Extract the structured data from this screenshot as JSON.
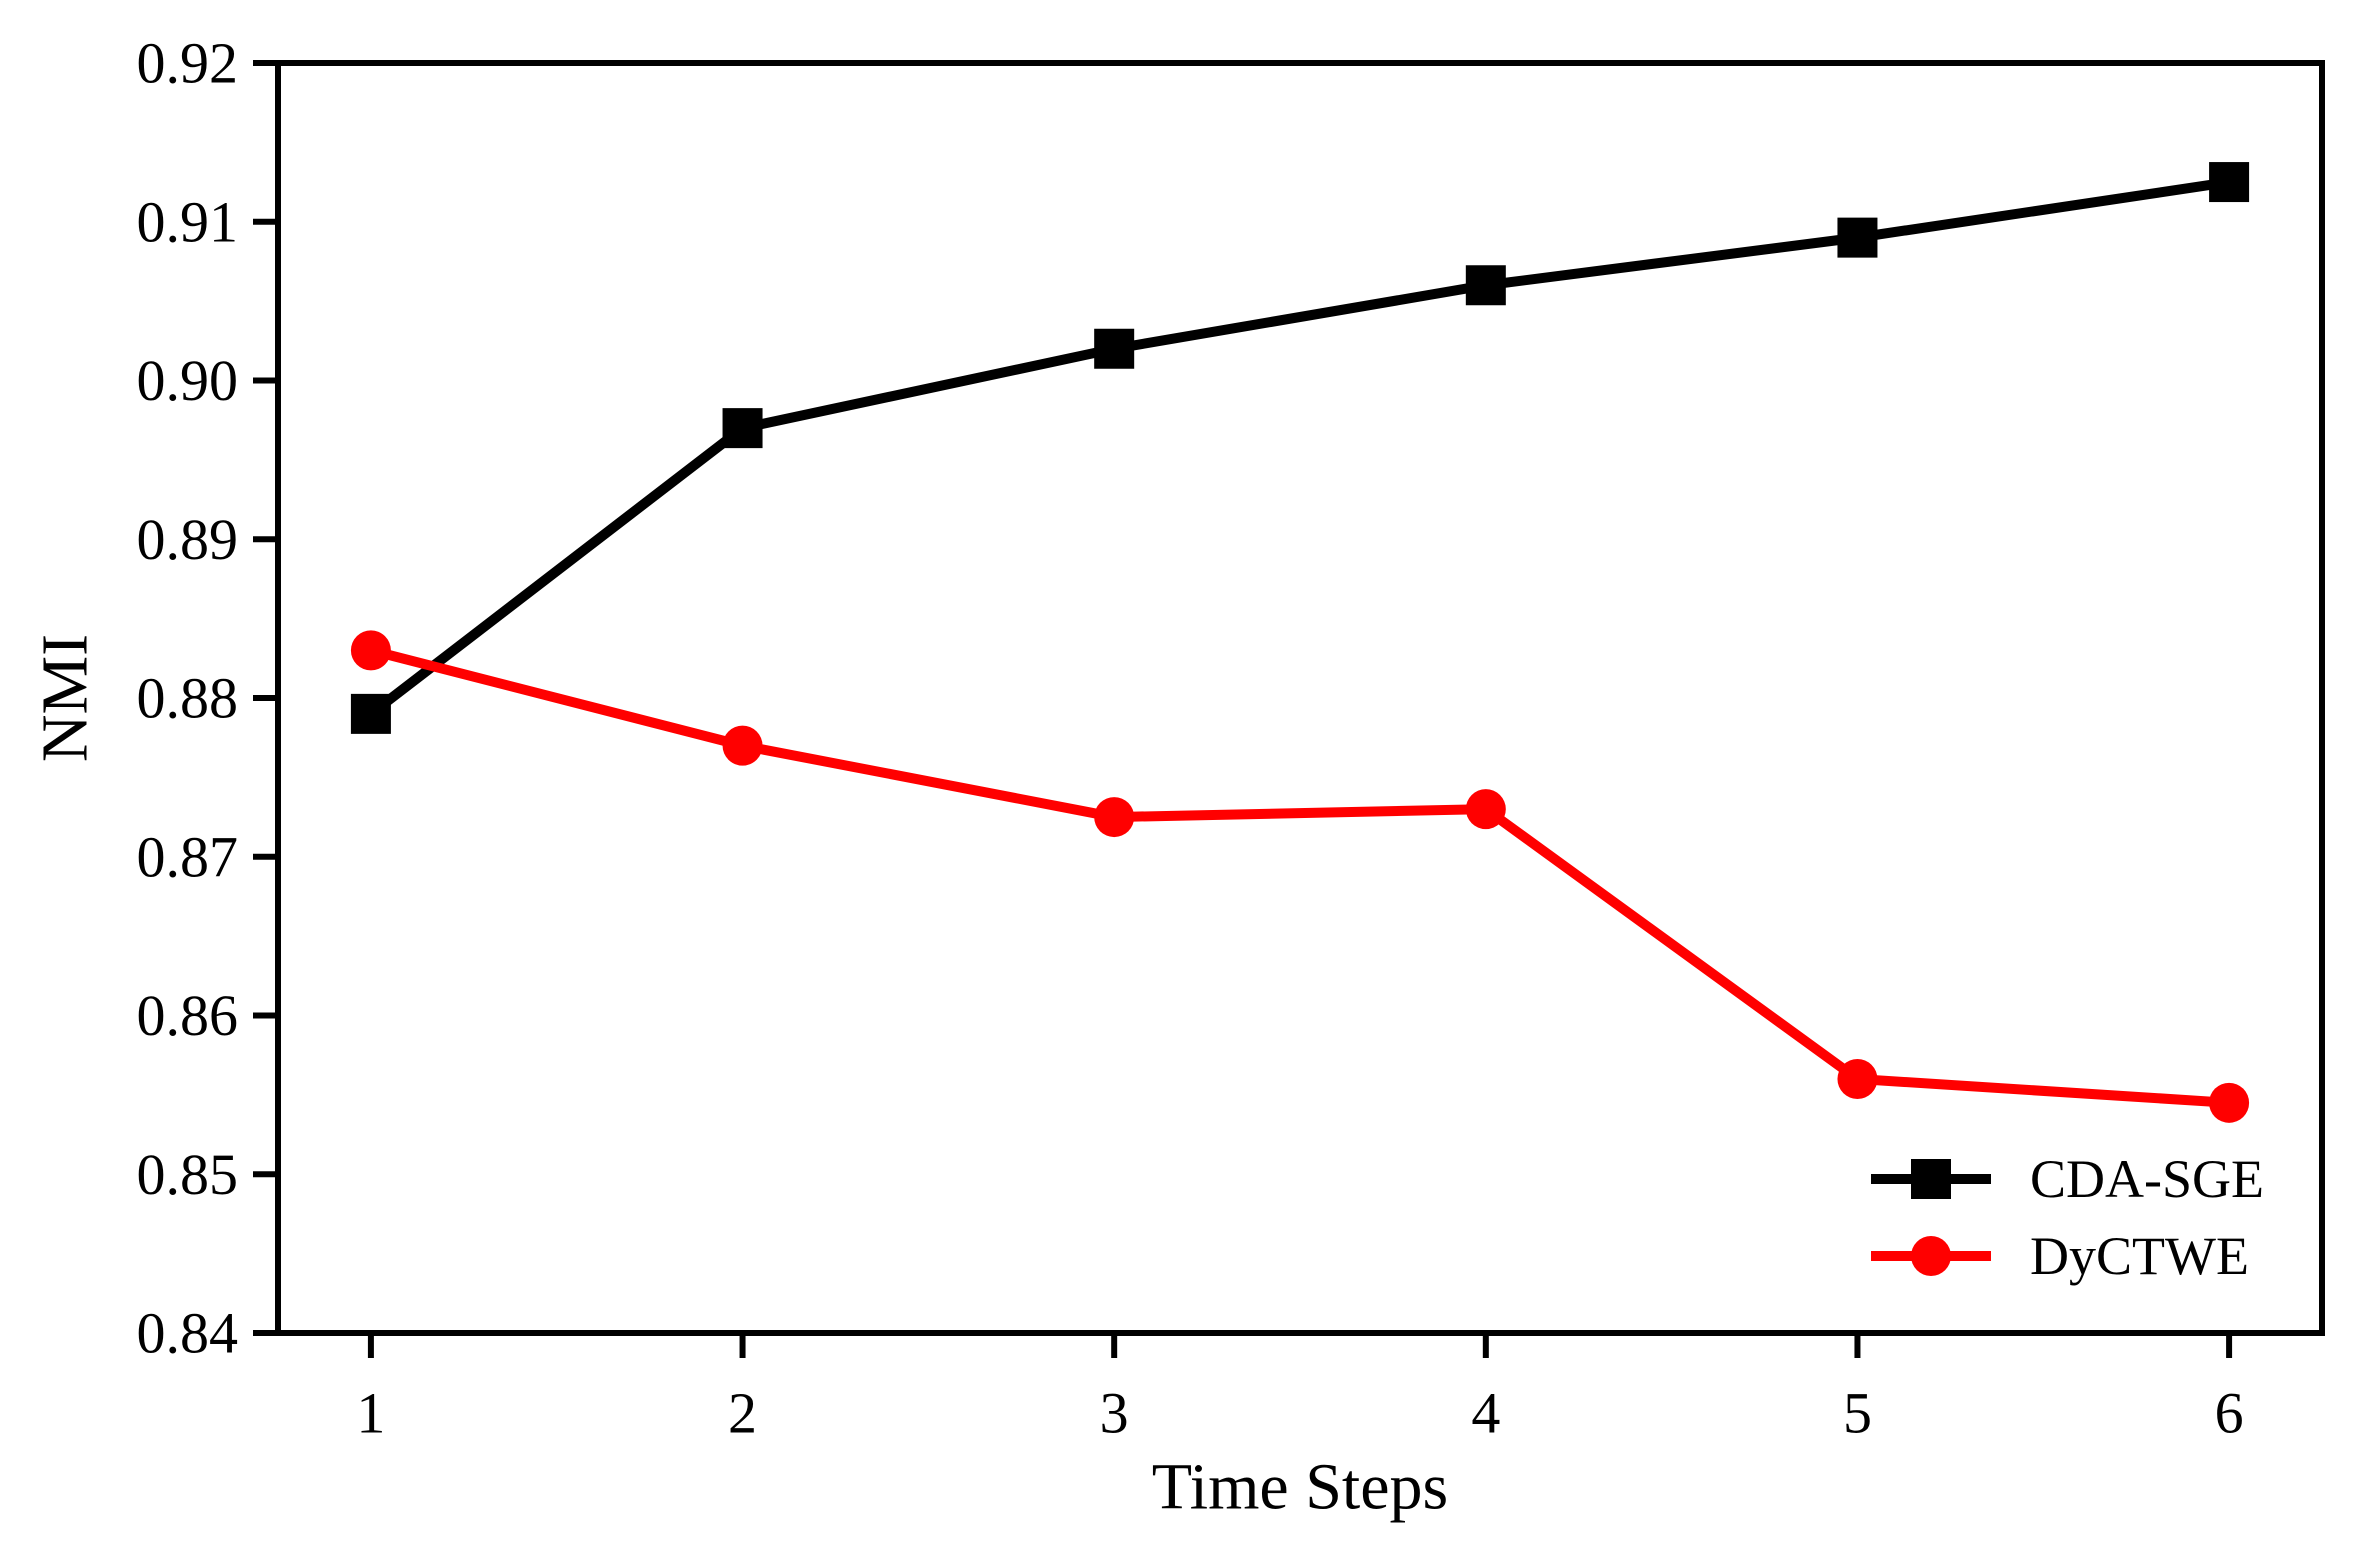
{
  "figure": {
    "background": "#ffffff"
  },
  "chart_data": {
    "type": "line",
    "title": "",
    "xlabel": "Time Steps",
    "ylabel": "NMI",
    "x": [
      1,
      2,
      3,
      4,
      5,
      6
    ],
    "x_tick_labels": [
      "1",
      "2",
      "3",
      "4",
      "5",
      "6"
    ],
    "xlim": [
      0.75,
      6.25
    ],
    "ylim": [
      0.84,
      0.92
    ],
    "yticks": [
      0.84,
      0.85,
      0.86,
      0.87,
      0.88,
      0.89,
      0.9,
      0.91,
      0.92
    ],
    "ytick_labels": [
      "0.84",
      "0.85",
      "0.86",
      "0.87",
      "0.88",
      "0.89",
      "0.90",
      "0.91",
      "0.92"
    ],
    "grid": false,
    "legend_position": "lower-right",
    "axis_color": "#000000",
    "series": [
      {
        "name": "CDA-SGE",
        "color": "#000000",
        "marker": "square",
        "values": [
          0.879,
          0.897,
          0.902,
          0.906,
          0.909,
          0.9125
        ]
      },
      {
        "name": "DyCTWE",
        "color": "#ff0000",
        "marker": "circle",
        "values": [
          0.883,
          0.877,
          0.8725,
          0.873,
          0.856,
          0.8545
        ]
      }
    ]
  }
}
